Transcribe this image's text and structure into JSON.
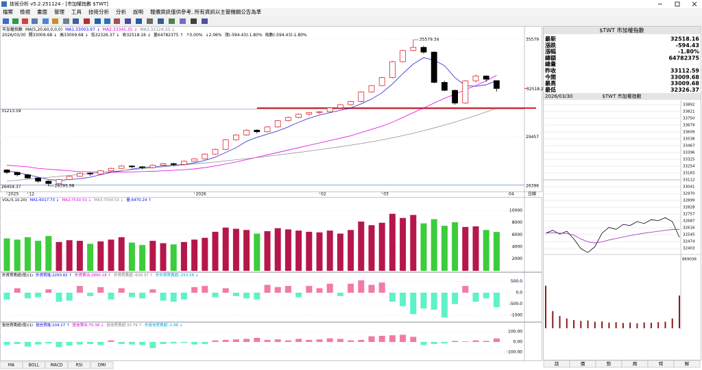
{
  "window": {
    "title": "技術分析 v5.2.251124 - [市加權指數 $TWT]"
  },
  "menu": {
    "items": [
      "檔案",
      "檢視",
      "畫面",
      "管理",
      "工具",
      "技術分析",
      "分析",
      "說明"
    ],
    "notice": "報價資訊僅供參考, 所有資訊以主管機關公告為準"
  },
  "chart_data": [
    {
      "type": "candlestick",
      "header": [
        {
          "text": "市加權指數"
        },
        {
          "text": "MA(5,20,60,0,0,0)"
        },
        {
          "text": "MA1:33003.97 ↓",
          "color": "#0000ff"
        },
        {
          "text": "MA2:33345.35 ↓",
          "color": "#e000e0"
        },
        {
          "text": "MA3:32124.33 ↓",
          "color": "#808080"
        }
      ],
      "subheader": [
        {
          "text": "2026/03/30"
        },
        {
          "text": "開33009.68 ↓"
        },
        {
          "text": "高33009.68 ↓"
        },
        {
          "text": "低32326.37 ↓"
        },
        {
          "text": "收32518.16 ↓"
        },
        {
          "text": "量64782375 ↑"
        },
        {
          "text": "↑0.00%"
        },
        {
          "text": "↓2.06%"
        },
        {
          "text": "漲(-594.43)-1.80%"
        },
        {
          "text": "指數(-594.43)-1.80%"
        }
      ],
      "categories": [
        "2025",
        null,
        "12",
        null,
        null,
        null,
        null,
        null,
        null,
        null,
        null,
        null,
        null,
        null,
        null,
        null,
        null,
        null,
        "2026",
        null,
        null,
        null,
        null,
        null,
        null,
        null,
        null,
        null,
        null,
        null,
        "02",
        null,
        null,
        null,
        null,
        null,
        "03",
        null,
        null,
        null,
        null,
        null,
        null,
        null,
        null,
        null,
        null,
        null
      ],
      "axis_end_label": "04",
      "period": "日線",
      "ohlc": [
        [
          27400,
          27450,
          27150,
          27250
        ],
        [
          27250,
          27300,
          27000,
          27100
        ],
        [
          27100,
          27150,
          26850,
          26900
        ],
        [
          26900,
          26950,
          26600,
          26700
        ],
        [
          26700,
          26750,
          26395.98,
          26550
        ],
        [
          26550,
          26850,
          26500,
          26800
        ],
        [
          26800,
          27050,
          26750,
          27000
        ],
        [
          27000,
          27250,
          26950,
          27200
        ],
        [
          27200,
          27250,
          27050,
          27150
        ],
        [
          27150,
          27400,
          27100,
          27350
        ],
        [
          27350,
          27550,
          27300,
          27500
        ],
        [
          27500,
          27700,
          27450,
          27650
        ],
        [
          27650,
          27700,
          27500,
          27600
        ],
        [
          27600,
          27650,
          27450,
          27550
        ],
        [
          27550,
          27750,
          27500,
          27700
        ],
        [
          27700,
          27850,
          27650,
          27800
        ],
        [
          27800,
          27850,
          27650,
          27750
        ],
        [
          27750,
          28000,
          27700,
          27950
        ],
        [
          27950,
          28150,
          27900,
          28100
        ],
        [
          28100,
          28450,
          28050,
          28400
        ],
        [
          28400,
          28750,
          28350,
          28700
        ],
        [
          28700,
          29350,
          28650,
          29300
        ],
        [
          29300,
          29650,
          29250,
          29600
        ],
        [
          29600,
          29950,
          29550,
          29900
        ],
        [
          29900,
          29950,
          29700,
          29800
        ],
        [
          29800,
          30150,
          29750,
          30100
        ],
        [
          30100,
          30550,
          30050,
          30500
        ],
        [
          30500,
          30750,
          30450,
          30700
        ],
        [
          30700,
          30950,
          30650,
          30900
        ],
        [
          30900,
          31050,
          30800,
          31000
        ],
        [
          31000,
          31100,
          30900,
          31050
        ],
        [
          31050,
          31350,
          31000,
          31300
        ],
        [
          31300,
          31550,
          31250,
          31500
        ],
        [
          31500,
          31750,
          31450,
          31700
        ],
        [
          31700,
          32350,
          31650,
          32300
        ],
        [
          32300,
          32750,
          32250,
          32700
        ],
        [
          32700,
          33250,
          32650,
          33200
        ],
        [
          33200,
          34250,
          33150,
          34200
        ],
        [
          34200,
          34950,
          34150,
          34900
        ],
        [
          34900,
          35579.34,
          34850,
          35100
        ],
        [
          35100,
          35200,
          34700,
          34800
        ],
        [
          34800,
          34850,
          32850,
          32900
        ],
        [
          32900,
          33000,
          32350,
          32400
        ],
        [
          32400,
          32450,
          31500,
          31600
        ],
        [
          31600,
          33050,
          31550,
          33000
        ],
        [
          33000,
          33400,
          32900,
          33300
        ],
        [
          33300,
          33350,
          32950,
          33100
        ],
        [
          33009.68,
          33009.68,
          32326.37,
          32518.16
        ]
      ],
      "up_color": "#e0202a",
      "down_color": "#000000",
      "series": [
        {
          "color": "#2020d0",
          "values": [
            27350,
            27250,
            27100,
            26950,
            26800,
            26750,
            26800,
            26850,
            26950,
            27100,
            27250,
            27350,
            27450,
            27550,
            27600,
            27650,
            27700,
            27750,
            27850,
            28000,
            28200,
            28500,
            28800,
            29200,
            29450,
            29650,
            29850,
            30100,
            30400,
            30650,
            30850,
            31000,
            31150,
            31300,
            31550,
            31850,
            32250,
            32800,
            33450,
            34050,
            34450,
            34300,
            33950,
            33200,
            32700,
            32650,
            32750,
            33003.97
          ]
        },
        {
          "color": "#e000e0",
          "values": [
            27700,
            27650,
            27600,
            27500,
            27450,
            27400,
            27350,
            27300,
            27280,
            27270,
            27260,
            27270,
            27280,
            27300,
            27320,
            27350,
            27380,
            27420,
            27470,
            27550,
            27650,
            27780,
            27900,
            28050,
            28200,
            28350,
            28500,
            28650,
            28800,
            28950,
            29100,
            29250,
            29400,
            29550,
            29750,
            29950,
            30150,
            30400,
            30700,
            31000,
            31300,
            31600,
            31900,
            32150,
            32450,
            32700,
            33000,
            33345.35
          ]
        },
        {
          "color": "#909090",
          "values": [
            26700,
            26760,
            26820,
            26880,
            26940,
            27000,
            27060,
            27120,
            27180,
            27240,
            27300,
            27360,
            27420,
            27480,
            27540,
            27600,
            27660,
            27720,
            27780,
            27840,
            27900,
            27970,
            28040,
            28110,
            28180,
            28260,
            28340,
            28420,
            28500,
            28590,
            28680,
            28770,
            28860,
            28960,
            29060,
            29170,
            29290,
            29420,
            29560,
            29710,
            29870,
            30040,
            30220,
            30410,
            30610,
            30820,
            31040,
            31270
          ]
        }
      ],
      "ylim": [
        26050,
        36140
      ],
      "yticks": [
        26396,
        29457,
        35579
      ],
      "last_price_label": {
        "value": 32518.16,
        "label": "32518.2"
      },
      "annotations": [
        {
          "value": 35579.34,
          "label": "35579.34"
        },
        {
          "value": 26395.98,
          "label": "26395.98"
        }
      ],
      "reference_lines": [
        {
          "value": 31213.59,
          "label": "31213.59"
        },
        {
          "value": 26454.37,
          "label": "26454.37"
        }
      ],
      "trend_line": {
        "value": 31288,
        "color": "#e02020"
      }
    },
    {
      "type": "bar",
      "header": [
        {
          "text": "VOL(5,10,20)"
        },
        {
          "text": "MA1:6017.73 ↓",
          "color": "#0000ff"
        },
        {
          "text": "MA2:7530.53 ↓",
          "color": "#e000e0"
        },
        {
          "text": "MA3:7554.53 ↓",
          "color": "#808080"
        },
        {
          "text": "量:6470.24 ↑",
          "color": "#0000ff"
        }
      ],
      "values": [
        5400,
        5200,
        5600,
        5000,
        5800,
        4800,
        5100,
        5000,
        4500,
        4900,
        5200,
        5600,
        4700,
        4300,
        5000,
        4600,
        4400,
        4800,
        5200,
        5500,
        6500,
        7200,
        7000,
        6800,
        6200,
        6600,
        7100,
        6900,
        6700,
        6500,
        6400,
        6700,
        6200,
        6800,
        8200,
        7600,
        8000,
        9500,
        8800,
        9300,
        7900,
        8600,
        7500,
        8100,
        7300,
        7400,
        6800,
        6470.24
      ],
      "up_color": "#b5174a",
      "down_color": "#3ccc3c",
      "ylim": [
        0,
        11500
      ],
      "yticks": [
        2000,
        4000,
        6000,
        8000,
        10000
      ]
    },
    {
      "type": "bar",
      "header": [
        {
          "text": "外資買賣超(億)(1)"
        },
        {
          "text": "外資買進:2250.82 ↑",
          "color": "#0000ff"
        },
        {
          "text": "外資賣出:2890.18 ↑",
          "color": "#e000e0"
        },
        {
          "text": "外資買賣超:-639.37 ↑",
          "color": "#808080"
        },
        {
          "text": "外外資買賣超:-253.58 ↓",
          "color": "#00a0e0"
        }
      ],
      "values": [
        -300,
        200,
        -250,
        -200,
        150,
        -400,
        -350,
        300,
        -150,
        250,
        -300,
        200,
        -200,
        -250,
        150,
        -350,
        -400,
        -300,
        250,
        300,
        -200,
        200,
        -150,
        -250,
        -300,
        350,
        250,
        300,
        -200,
        300,
        200,
        400,
        -150,
        400,
        550,
        350,
        450,
        -400,
        -600,
        -950,
        -700,
        -750,
        -1100,
        -500,
        300,
        -400,
        -250,
        -639.37
      ],
      "positive_color": "#f37aa6",
      "negative_color": "#5ef2c8",
      "ylim": [
        -1212,
        697
      ],
      "yticks": [
        {
          "value": 500,
          "label": "500.0"
        },
        {
          "value": 0,
          "label": "0.0"
        },
        {
          "value": -500,
          "label": "-500.0"
        },
        -1000
      ]
    },
    {
      "type": "bar",
      "header": [
        {
          "text": "投信買賣超(億)(1)"
        },
        {
          "text": "投信買進:104.17 ↑",
          "color": "#0000ff"
        },
        {
          "text": "投信賣出:70.38 ↓",
          "color": "#e000e0"
        },
        {
          "text": "投信買賣超:33.79 ↑",
          "color": "#808080"
        },
        {
          "text": "外投信買賣超:-1.88 ↓",
          "color": "#00a0e0"
        }
      ],
      "values": [
        -30,
        -20,
        -45,
        -25,
        -15,
        -50,
        -35,
        -25,
        -20,
        -30,
        15,
        -20,
        -25,
        -30,
        -60,
        -20,
        -15,
        -10,
        -25,
        -20,
        15,
        20,
        25,
        30,
        40,
        20,
        25,
        15,
        30,
        20,
        25,
        35,
        30,
        15,
        20,
        55,
        60,
        65,
        70,
        50,
        -30,
        -20,
        -15,
        10,
        5,
        15,
        10,
        33.79
      ],
      "positive_color": "#f37aa6",
      "negative_color": "#5ef2c8",
      "ylim": [
        -180,
        133
      ],
      "yticks": [
        {
          "value": 100,
          "label": "100.00"
        },
        {
          "value": 0,
          "label": "0.00"
        },
        {
          "value": -100,
          "label": "-100.00"
        }
      ]
    },
    {
      "type": "line",
      "date": "2026/03/30",
      "title": "$TWT 市加權指數",
      "reference": 33112.59,
      "series": [
        {
          "color": "#000000",
          "values": [
            32560,
            32590,
            32550,
            32580,
            32500,
            32400,
            32360,
            32420,
            32560,
            32620,
            32600,
            32650,
            32640,
            32680,
            32660,
            32700,
            32690,
            32720,
            32680,
            32518.16
          ]
        },
        {
          "color": "#a020c0",
          "values": [
            32560,
            32565,
            32560,
            32558,
            32540,
            32500,
            32470,
            32460,
            32470,
            32490,
            32505,
            32520,
            32535,
            32548,
            32560,
            32570,
            32580,
            32590,
            32598,
            32600
          ]
        }
      ],
      "ylim": [
        32340,
        33934
      ],
      "yticks": [
        33892,
        33821,
        33750,
        33679,
        33609,
        33538,
        33467,
        33396,
        33325,
        33254,
        33183,
        33112,
        33041,
        32970,
        32899,
        32828,
        32757,
        32687,
        32616,
        32545,
        32474,
        32403
      ],
      "volume": {
        "values": [
          520000,
          210000,
          150000,
          120000,
          100000,
          90000,
          95000,
          80000,
          85000,
          70000,
          75000,
          65000,
          70000,
          60000,
          72000,
          68000,
          75000,
          80000,
          120000,
          400000
        ],
        "color": "#8b1a1a",
        "ylim": [
          0,
          869036
        ],
        "yticks": [
          869036
        ]
      }
    }
  ],
  "quote": {
    "title": "$TWT 市加權指數",
    "rows": [
      {
        "label": "最新",
        "value": "32518.16",
        "color": "#009900"
      },
      {
        "label": "漲跌",
        "value": "-594.43",
        "color": "#009900"
      },
      {
        "label": "漲幅",
        "value": "-1.80%",
        "color": "#009900"
      },
      {
        "label": "總額",
        "value": "64782375",
        "color": "#000000"
      },
      {
        "label": "總量"
      },
      {
        "label": "昨收",
        "value": "33112.59",
        "color": "#000000"
      },
      {
        "label": "今開",
        "value": "33009.68",
        "color": "#009900"
      },
      {
        "label": "最高",
        "value": "33009.68",
        "color": "#009900"
      },
      {
        "label": "最低",
        "value": "32326.37",
        "color": "#009900"
      }
    ]
  },
  "indicator_tabs": [
    "MA",
    "BOLL",
    "MACD",
    "RSI",
    "DMI"
  ],
  "intraday_tabs": [
    {
      "text": "話"
    },
    {
      "text": "價"
    },
    {
      "text": "勢",
      "color": "#e02020"
    },
    {
      "text": "周"
    },
    {
      "text": "特"
    },
    {
      "text": "解"
    }
  ]
}
